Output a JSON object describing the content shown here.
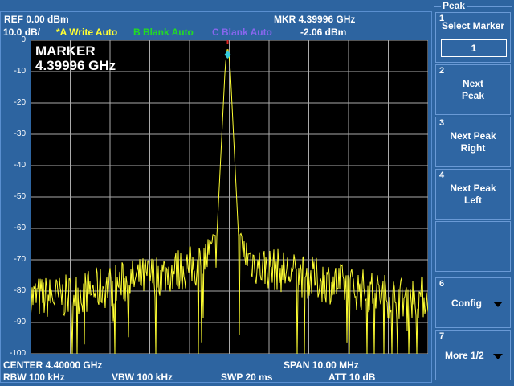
{
  "header": {
    "ref": "REF  0.00 dBm",
    "scale": "10.0 dB/",
    "trace_a": "*A Write Auto",
    "trace_b": "B Blank Auto",
    "trace_c": "C Blank Auto",
    "mkr_freq": "MKR  4.39996 GHz",
    "mkr_level": "-2.06 dBm"
  },
  "colors": {
    "trace_a": "#ffff33",
    "trace_b": "#22dd22",
    "trace_c": "#8866ee",
    "marker": "#33ccdd"
  },
  "plot": {
    "marker_title": "MARKER",
    "marker_freq": "4.39996 GHz",
    "y_ticks": [
      "0",
      "-10",
      "-20",
      "-30",
      "-40",
      "-50",
      "-60",
      "-70",
      "-80",
      "-90",
      "-100"
    ]
  },
  "footer": {
    "center": "CENTER 4.40000 GHz",
    "span": "SPAN 10.00 MHz",
    "rbw": "RBW  100 kHz",
    "vbw": "VBW  100 kHz",
    "swp": "SWP  20 ms",
    "att": "ATT 10 dB"
  },
  "softkeys": {
    "menu_title": "Peak",
    "items": [
      {
        "num": "1",
        "label": "Select Marker",
        "value": "1"
      },
      {
        "num": "2",
        "label1": "Next",
        "label2": "Peak"
      },
      {
        "num": "3",
        "label1": "Next Peak",
        "label2": "Right"
      },
      {
        "num": "4",
        "label1": "Next Peak",
        "label2": "Left"
      },
      {
        "num": "6",
        "label": "Config"
      },
      {
        "num": "7",
        "label": "More 1/2"
      }
    ]
  }
}
